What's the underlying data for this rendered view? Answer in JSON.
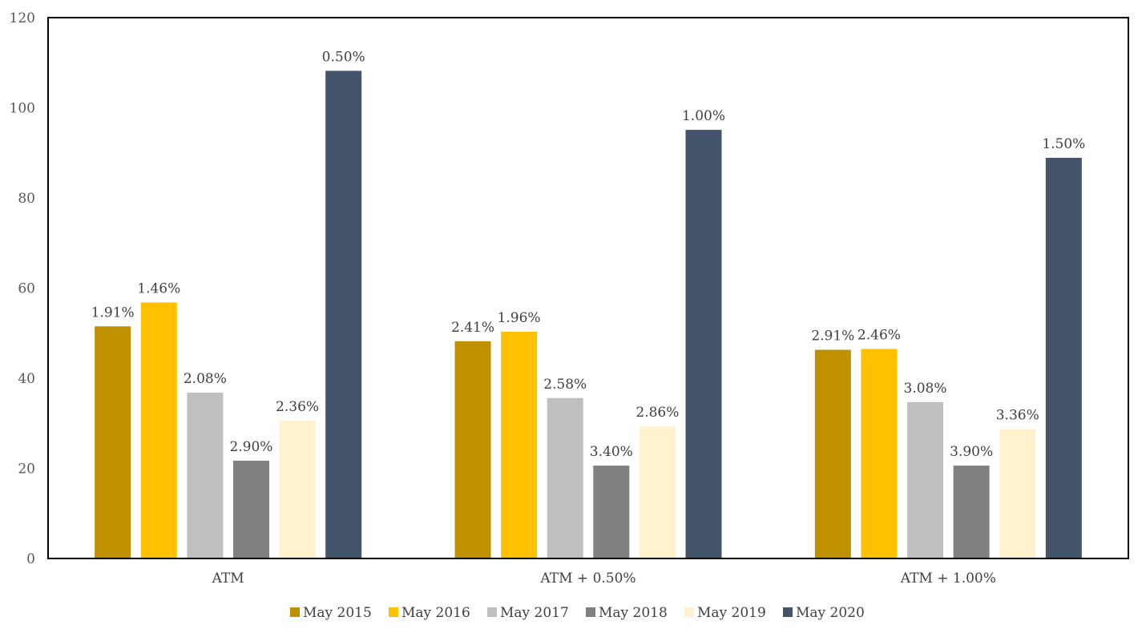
{
  "chart_data": {
    "type": "bar",
    "title": "",
    "xlabel": "",
    "ylabel": "",
    "ylim": [
      0,
      120
    ],
    "yticks": [
      0,
      20,
      40,
      60,
      80,
      100,
      120
    ],
    "grid": false,
    "legend_position": "bottom",
    "categories": [
      "ATM",
      "ATM + 0.50%",
      "ATM + 1.00%"
    ],
    "series": [
      {
        "name": "May 2015",
        "color": "#BF9000",
        "values": [
          51.5,
          48.2,
          46.3
        ],
        "labels": [
          "1.91%",
          "2.41%",
          "2.91%"
        ]
      },
      {
        "name": "May 2016",
        "color": "#FFC000",
        "values": [
          56.8,
          50.3,
          46.5
        ],
        "labels": [
          "1.46%",
          "1.96%",
          "2.46%"
        ]
      },
      {
        "name": "May 2017",
        "color": "#BFBFBF",
        "values": [
          36.8,
          35.6,
          34.7
        ],
        "labels": [
          "2.08%",
          "2.58%",
          "3.08%"
        ]
      },
      {
        "name": "May 2018",
        "color": "#808080",
        "values": [
          21.7,
          20.6,
          20.6
        ],
        "labels": [
          "2.90%",
          "3.40%",
          "3.90%"
        ]
      },
      {
        "name": "May 2019",
        "color": "#FFF2CC",
        "values": [
          30.6,
          29.3,
          28.7
        ],
        "labels": [
          "2.36%",
          "2.86%",
          "3.36%"
        ]
      },
      {
        "name": "May 2020",
        "color": "#44546A",
        "values": [
          108.2,
          95.1,
          88.9
        ],
        "labels": [
          "0.50%",
          "1.00%",
          "1.50%"
        ]
      }
    ]
  }
}
